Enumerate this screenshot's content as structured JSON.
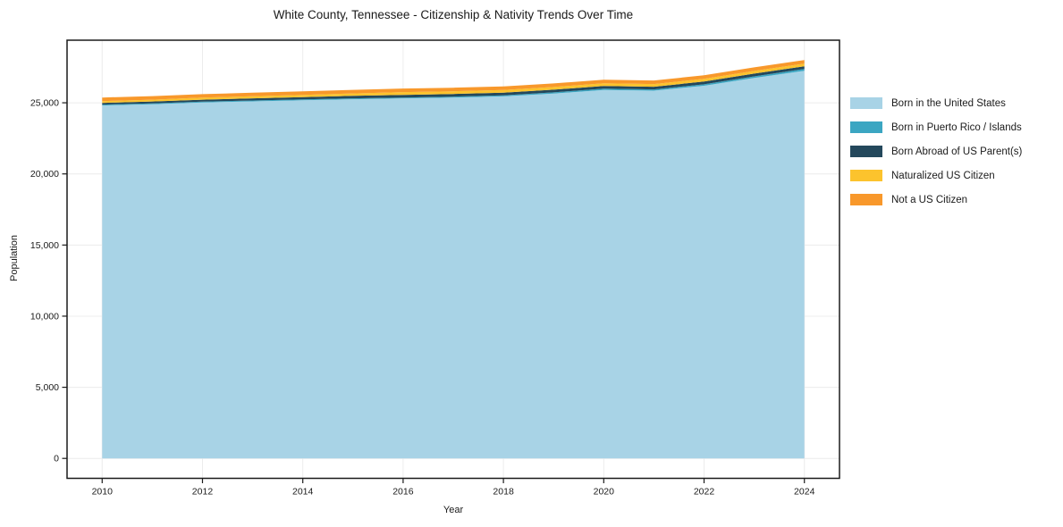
{
  "chart_data": {
    "type": "area",
    "stacked": true,
    "title": "White County, Tennessee - Citizenship & Nativity Trends Over Time",
    "xlabel": "Year",
    "ylabel": "Population",
    "x": [
      2010,
      2011,
      2012,
      2013,
      2014,
      2015,
      2016,
      2017,
      2018,
      2019,
      2020,
      2021,
      2022,
      2023,
      2024
    ],
    "series": [
      {
        "name": "Born in the United States",
        "color": "#a8d3e6",
        "values": [
          24810,
          24900,
          25020,
          25100,
          25180,
          25250,
          25310,
          25360,
          25450,
          25650,
          25900,
          25850,
          26200,
          26750,
          27250
        ]
      },
      {
        "name": "Born in Puerto Rico / Islands",
        "color": "#3ba6c2",
        "values": [
          60,
          60,
          60,
          60,
          60,
          60,
          60,
          70,
          70,
          80,
          90,
          90,
          100,
          110,
          125
        ]
      },
      {
        "name": "Born Abroad of US Parent(s)",
        "color": "#24485c",
        "values": [
          125,
          130,
          140,
          150,
          160,
          175,
          190,
          190,
          190,
          190,
          190,
          190,
          190,
          190,
          190
        ]
      },
      {
        "name": "Naturalized US Citizen",
        "color": "#fcc32d",
        "values": [
          125,
          130,
          140,
          150,
          160,
          175,
          190,
          190,
          190,
          190,
          190,
          190,
          190,
          190,
          190
        ]
      },
      {
        "name": "Not a US Citizen",
        "color": "#f8982b",
        "values": [
          250,
          250,
          250,
          250,
          250,
          250,
          250,
          250,
          250,
          250,
          250,
          250,
          250,
          250,
          250
        ]
      }
    ],
    "x_ticks": [
      2010,
      2012,
      2014,
      2016,
      2018,
      2020,
      2022,
      2024
    ],
    "x_tick_labels": [
      "2010",
      "2012",
      "2014",
      "2016",
      "2018",
      "2020",
      "2022",
      "2024"
    ],
    "y_ticks": [
      0,
      5000,
      10000,
      15000,
      20000,
      25000
    ],
    "y_tick_labels": [
      "0",
      "5,000",
      "10,000",
      "15,000",
      "20,000",
      "25,000"
    ],
    "xlim": [
      2009.3,
      2024.7
    ],
    "ylim": [
      -1400,
      29400
    ],
    "grid": true,
    "legend_position": "right",
    "colors": {
      "grid": "#ececec",
      "spine": "#1a1a1a",
      "tick_text": "#1a1a1a",
      "background": "#ffffff"
    }
  }
}
